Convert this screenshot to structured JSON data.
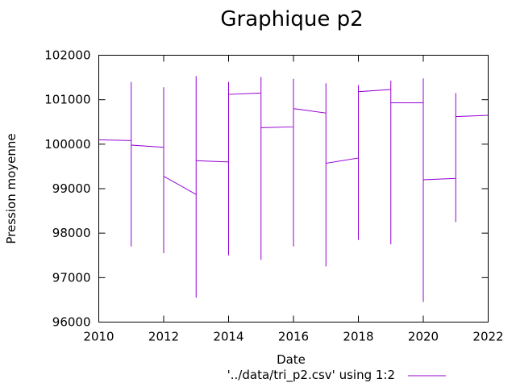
{
  "chart_data": {
    "type": "line",
    "title": "Graphique p2",
    "xlabel": "Date",
    "ylabel": "Pression moyenne",
    "xlim": [
      2010,
      2022
    ],
    "ylim": [
      96000,
      102000
    ],
    "x_ticks": [
      "2010",
      "2012",
      "2014",
      "2016",
      "2018",
      "2020",
      "2022"
    ],
    "y_ticks": [
      "96000",
      "97000",
      "98000",
      "99000",
      "100000",
      "101000",
      "102000"
    ],
    "grid": false,
    "legend_position": "bottom-center",
    "color": "#9400d3",
    "series": [
      {
        "name": "'../data/tri_p2.csv' using 1:2",
        "points": [
          [
            2010,
            100100
          ],
          [
            2011,
            100080
          ],
          [
            2011,
            101400
          ],
          [
            2011,
            97700
          ],
          [
            2011,
            99980
          ],
          [
            2012,
            99930
          ],
          [
            2012,
            101280
          ],
          [
            2012,
            97550
          ],
          [
            2012,
            99280
          ],
          [
            2013,
            98870
          ],
          [
            2013,
            101530
          ],
          [
            2013,
            96550
          ],
          [
            2013,
            99630
          ],
          [
            2014,
            99600
          ],
          [
            2014,
            101400
          ],
          [
            2014,
            97500
          ],
          [
            2014,
            101120
          ],
          [
            2015,
            101150
          ],
          [
            2015,
            101510
          ],
          [
            2015,
            97400
          ],
          [
            2015,
            100370
          ],
          [
            2016,
            100390
          ],
          [
            2016,
            101470
          ],
          [
            2016,
            97700
          ],
          [
            2016,
            100800
          ],
          [
            2017,
            100700
          ],
          [
            2017,
            101370
          ],
          [
            2017,
            97250
          ],
          [
            2017,
            99570
          ],
          [
            2018,
            99690
          ],
          [
            2018,
            101330
          ],
          [
            2018,
            97850
          ],
          [
            2018,
            101180
          ],
          [
            2019,
            101230
          ],
          [
            2019,
            101430
          ],
          [
            2019,
            97750
          ],
          [
            2019,
            100930
          ],
          [
            2020,
            100930
          ],
          [
            2020,
            101480
          ],
          [
            2020,
            96450
          ],
          [
            2020,
            99200
          ],
          [
            2021,
            99230
          ],
          [
            2021,
            101150
          ],
          [
            2021,
            98250
          ],
          [
            2021,
            100620
          ],
          [
            2022,
            100650
          ]
        ]
      }
    ]
  }
}
